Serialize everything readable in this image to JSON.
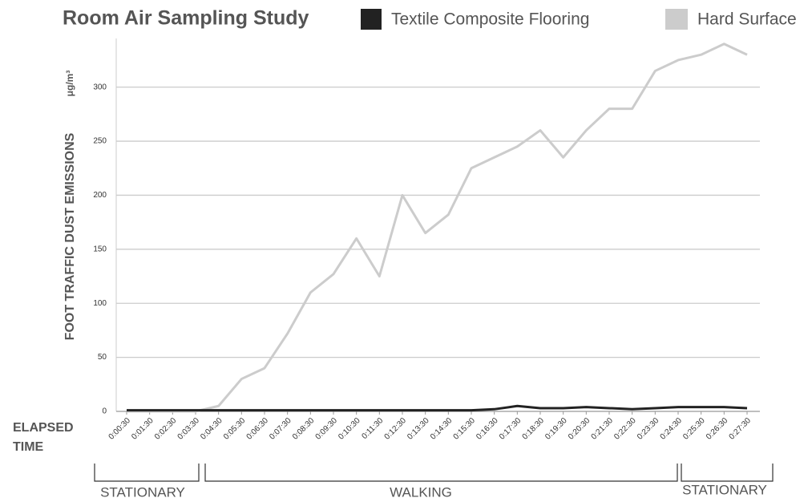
{
  "chart_data": {
    "type": "line",
    "title": "Room Air Sampling Study",
    "y_label": "FOOT TRAFFIC DUST EMISSIONS",
    "y_unit": "μg/m³",
    "x_label": [
      "ELAPSED",
      "TIME"
    ],
    "annotations": [
      "STATIONARY",
      "WALKING",
      "STATIONARY"
    ],
    "categories": [
      "0:00:30",
      "0:01:30",
      "0:02:30",
      "0:03:30",
      "0:04:30",
      "0:05:30",
      "0:06:30",
      "0:07:30",
      "0:08:30",
      "0:09:30",
      "0:10:30",
      "0:11:30",
      "0:12:30",
      "0:13:30",
      "0:14:30",
      "0:15:30",
      "0:16:30",
      "0:17:30",
      "0:18:30",
      "0:19:30",
      "0:20:30",
      "0:21:30",
      "0:22:30",
      "0:23:30",
      "0:24:30",
      "0:25:30",
      "0:26:30",
      "0:27:30"
    ],
    "series": [
      {
        "name": "Textile Composite Flooring",
        "color": "#222222",
        "values": [
          1,
          1,
          1,
          1,
          1,
          1,
          1,
          1,
          1,
          1,
          1,
          1,
          1,
          1,
          1,
          1,
          2,
          5,
          3,
          3,
          4,
          3,
          2,
          3,
          4,
          4,
          4,
          3
        ]
      },
      {
        "name": "Hard Surface",
        "color": "#cccccc",
        "values": [
          0,
          0,
          0,
          0,
          5,
          30,
          40,
          72,
          110,
          127,
          160,
          125,
          200,
          165,
          182,
          225,
          235,
          245,
          260,
          235,
          260,
          280,
          280,
          315,
          325,
          330,
          340,
          330
        ]
      }
    ],
    "ylim": [
      0,
      345
    ],
    "yticks": [
      0,
      50,
      100,
      150,
      200,
      250,
      300
    ],
    "grid": true
  }
}
